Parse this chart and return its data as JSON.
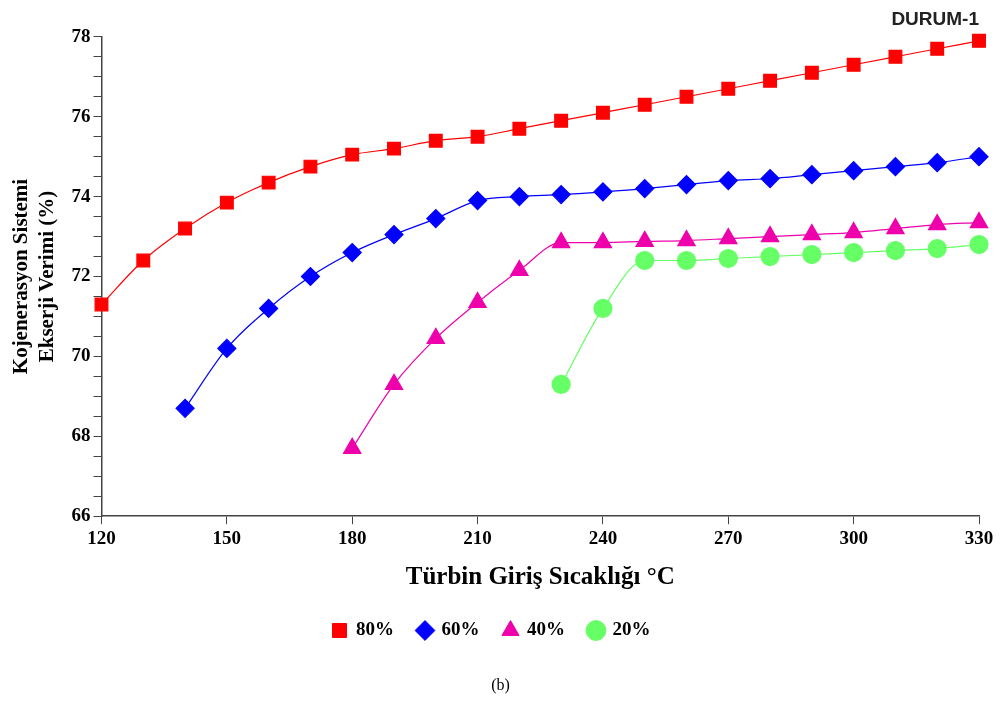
{
  "chart_data": {
    "type": "line",
    "title": "DURUM-1",
    "xlabel": "Türbin Giriş Sıcaklığı °C",
    "ylabel": "Kojenerasyon Sistemi\nEkserji Verimi (%)",
    "annotations": [
      "(b)"
    ],
    "xlim": [
      120,
      330
    ],
    "xticks": [
      120,
      150,
      180,
      210,
      240,
      270,
      300,
      330
    ],
    "ylim": [
      66,
      78
    ],
    "yticks": [
      66,
      {
        "value": 66.5,
        "label": null
      },
      {
        "value": 67,
        "label": null
      },
      {
        "value": 67.5,
        "label": null
      },
      68,
      {
        "value": 68.5,
        "label": null
      },
      {
        "value": 69,
        "label": null
      },
      {
        "value": 69.5,
        "label": null
      },
      70,
      {
        "value": 70.5,
        "label": null
      },
      {
        "value": 71,
        "label": null
      },
      {
        "value": 71.5,
        "label": null
      },
      72,
      {
        "value": 72.5,
        "label": null
      },
      {
        "value": 73,
        "label": null
      },
      {
        "value": 73.5,
        "label": null
      },
      74,
      {
        "value": 74.5,
        "label": null
      },
      {
        "value": 75,
        "label": null
      },
      {
        "value": 75.5,
        "label": null
      },
      76,
      {
        "value": 76.5,
        "label": null
      },
      {
        "value": 77,
        "label": null
      },
      {
        "value": 77.5,
        "label": null
      },
      78
    ],
    "grid": false,
    "legend": "bottom",
    "line_style": "solid",
    "series": [
      {
        "name": "80%",
        "color": "#ff0000",
        "marker": "square",
        "x": [
          120,
          130,
          140,
          150,
          160,
          170,
          180,
          190,
          200,
          210,
          220,
          230,
          240,
          250,
          260,
          270,
          280,
          290,
          300,
          310,
          320,
          330
        ],
        "values": [
          71.3,
          72.4,
          73.2,
          73.85,
          74.35,
          74.75,
          75.05,
          75.2,
          75.4,
          75.5,
          75.7,
          75.9,
          76.1,
          76.3,
          76.5,
          76.7,
          76.9,
          77.1,
          77.3,
          77.5,
          77.7,
          77.9
        ]
      },
      {
        "name": "60%",
        "color": "#0000ff",
        "marker": "diamond",
        "x": [
          140,
          150,
          160,
          170,
          180,
          190,
          200,
          210,
          220,
          230,
          240,
          250,
          260,
          270,
          280,
          290,
          300,
          310,
          320,
          330
        ],
        "values": [
          68.7,
          70.2,
          71.2,
          72.0,
          72.6,
          73.05,
          73.45,
          73.9,
          74.0,
          74.05,
          74.12,
          74.2,
          74.3,
          74.4,
          74.45,
          74.55,
          74.65,
          74.75,
          74.85,
          75.0
        ]
      },
      {
        "name": "40%",
        "color": "#ee00aa",
        "marker": "triangle",
        "x": [
          180,
          190,
          200,
          210,
          220,
          230,
          240,
          250,
          260,
          270,
          280,
          290,
          300,
          310,
          320,
          330
        ],
        "values": [
          67.7,
          69.3,
          70.45,
          71.35,
          72.15,
          72.85,
          72.85,
          72.88,
          72.9,
          72.95,
          73.0,
          73.05,
          73.1,
          73.2,
          73.3,
          73.35
        ]
      },
      {
        "name": "20%",
        "color": "#66ff66",
        "marker": "circle",
        "x": [
          230,
          240,
          250,
          260,
          270,
          280,
          290,
          300,
          310,
          320,
          330
        ],
        "values": [
          69.3,
          71.2,
          72.4,
          72.4,
          72.45,
          72.5,
          72.55,
          72.6,
          72.65,
          72.7,
          72.8
        ]
      }
    ]
  }
}
